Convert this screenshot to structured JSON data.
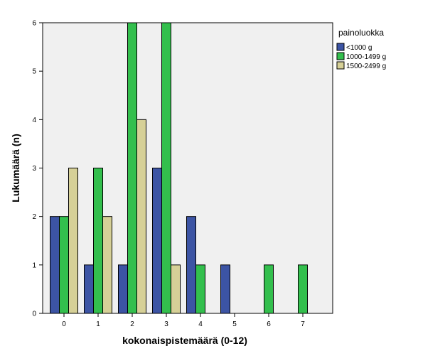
{
  "chart_data": {
    "type": "bar",
    "xlabel": "kokonaispistemäärä (0-12)",
    "ylabel": "Lukumäärä (n)",
    "ylim": [
      0,
      6
    ],
    "y_ticks": [
      0,
      1,
      2,
      3,
      4,
      5,
      6
    ],
    "categories": [
      "0",
      "1",
      "2",
      "3",
      "4",
      "5",
      "6",
      "7"
    ],
    "legend": {
      "title": "painoluokka",
      "position": "right"
    },
    "series": [
      {
        "name": "<1000 g",
        "color": "#3c54a4",
        "values": [
          2,
          1,
          1,
          3,
          2,
          1,
          0,
          0
        ]
      },
      {
        "name": "1000-1499 g",
        "color": "#33bf4d",
        "values": [
          2,
          3,
          6,
          6,
          1,
          0,
          1,
          1
        ]
      },
      {
        "name": "1500-2499 g",
        "color": "#d6d097",
        "values": [
          3,
          2,
          4,
          1,
          0,
          0,
          0,
          0
        ]
      }
    ],
    "plot_background": "#f0f0f0",
    "grid": false
  }
}
